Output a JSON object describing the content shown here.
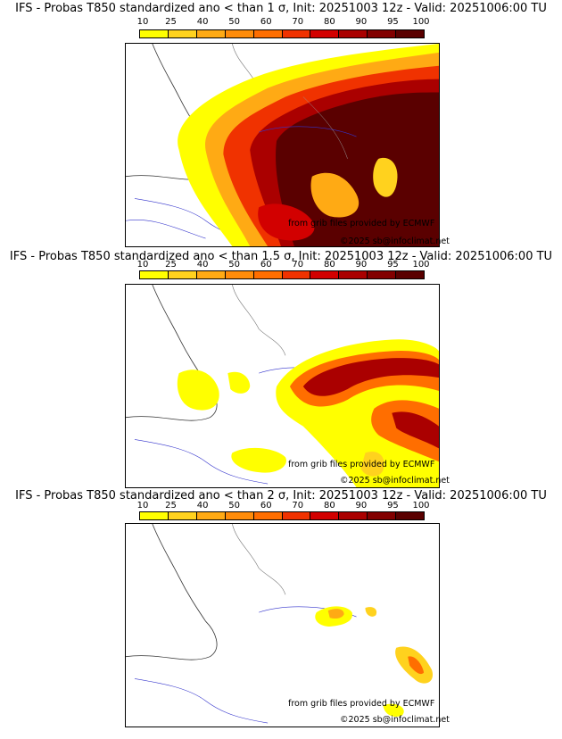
{
  "legend": {
    "ticks": [
      "10",
      "25",
      "40",
      "50",
      "60",
      "70",
      "80",
      "90",
      "95",
      "100"
    ],
    "colors": [
      "#ffff00",
      "#ffd21e",
      "#ffaa14",
      "#ff8c0a",
      "#ff6e00",
      "#f03200",
      "#d20000",
      "#aa0000",
      "#820000",
      "#5a0000"
    ]
  },
  "panels": [
    {
      "title": "IFS - Probas T850  standardized ano < than 1 σ, Init: 20251003 12z - Valid: 20251006:00 TU",
      "credit_source": "from grib files provided by ECMWF",
      "credit_copyright": "©2025 sb@infoclimat.net"
    },
    {
      "title": "IFS - Probas T850  standardized ano < than 1.5 σ, Init: 20251003 12z - Valid: 20251006:00 TU",
      "credit_source": "from grib files provided by ECMWF",
      "credit_copyright": "©2025 sb@infoclimat.net"
    },
    {
      "title": "IFS - Probas T850  standardized ano < than 2 σ, Init: 20251003 12z - Valid: 20251006:00 TU",
      "credit_source": "from grib files provided by ECMWF",
      "credit_copyright": "©2025 sb@infoclimat.net"
    }
  ]
}
